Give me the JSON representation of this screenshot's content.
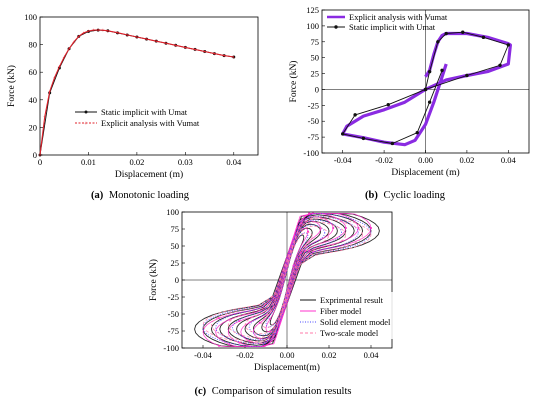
{
  "captions": [
    {
      "letter": "(a)",
      "text": "Monotonic loading"
    },
    {
      "letter": "(b)",
      "text": "Cyclic loading"
    },
    {
      "letter": "(c)",
      "text": "Comparison of simulation results"
    }
  ],
  "colors": {
    "black": "#111111",
    "red": "#e0202a",
    "purple": "#8a2be2",
    "magenta": "#ff33cc",
    "blue": "#4a4aff",
    "pink": "#ff7aa8"
  },
  "chart_data": [
    {
      "id": "a",
      "type": "line",
      "xlabel": "Displacement (m)",
      "ylabel": "Force (kN)",
      "xlim": [
        0,
        0.045
      ],
      "ylim": [
        0,
        100
      ],
      "xticks": [
        0,
        0.01,
        0.02,
        0.03,
        0.04
      ],
      "xtick_labels": [
        "0",
        "0.01",
        "0.02",
        "0.03",
        "0.04"
      ],
      "yticks": [
        0,
        20,
        40,
        60,
        80,
        100
      ],
      "ytick_labels": [
        "0",
        "20",
        "40",
        "60",
        "80",
        "100"
      ],
      "legend_position": "center-right",
      "series": [
        {
          "name": "Static implicit with Umat",
          "color": "#111111",
          "style": "marker-line",
          "x": [
            0,
            0.002,
            0.004,
            0.006,
            0.008,
            0.01,
            0.012,
            0.014,
            0.016,
            0.018,
            0.02,
            0.022,
            0.024,
            0.026,
            0.028,
            0.03,
            0.032,
            0.034,
            0.036,
            0.038,
            0.04
          ],
          "y": [
            0,
            45,
            63,
            77,
            86,
            89.5,
            90.5,
            90,
            88.5,
            87,
            85.5,
            84,
            82.5,
            81,
            79.5,
            78,
            76.5,
            75,
            73.5,
            72,
            71
          ]
        },
        {
          "name": "Explicit analysis with Vumat",
          "color": "#e0202a",
          "style": "dense-marker-line",
          "x": [
            0,
            0.001,
            0.002,
            0.003,
            0.004,
            0.005,
            0.006,
            0.007,
            0.008,
            0.009,
            0.01,
            0.011,
            0.012,
            0.013,
            0.014,
            0.016,
            0.018,
            0.02,
            0.022,
            0.024,
            0.026,
            0.028,
            0.03,
            0.032,
            0.034,
            0.036,
            0.038,
            0.04
          ],
          "y": [
            0,
            28,
            46,
            56,
            64,
            71,
            77,
            82,
            86,
            88.5,
            89.8,
            90.5,
            90.6,
            90.4,
            90,
            88.6,
            87,
            85.5,
            84,
            82.5,
            81,
            79.5,
            78,
            76.5,
            75,
            73.5,
            72,
            71
          ]
        }
      ]
    },
    {
      "id": "b",
      "type": "line",
      "xlabel": "Displacement (m)",
      "ylabel": "Force (kN)",
      "xlim": [
        -0.05,
        0.05
      ],
      "ylim": [
        -100,
        125
      ],
      "xticks": [
        -0.04,
        -0.02,
        0,
        0.02,
        0.04
      ],
      "xtick_labels": [
        "-0.04",
        "-0.02",
        "0.00",
        "0.02",
        "0.04"
      ],
      "yticks": [
        -100,
        -75,
        -50,
        -25,
        0,
        25,
        50,
        75,
        100,
        125
      ],
      "ytick_labels": [
        "-100",
        "-75",
        "-50",
        "-25",
        "0",
        "25",
        "50",
        "75",
        "100",
        "125"
      ],
      "legend_position": "top-left",
      "series": [
        {
          "name": "Explicit analysis with Vumat",
          "color": "#8a2be2",
          "style": "dense-marker-line",
          "x": [
            0,
            0.002,
            0.004,
            0.006,
            0.008,
            0.01,
            0.02,
            0.03,
            0.04,
            0.041,
            0.04,
            0.03,
            0.02,
            0.01,
            0.0,
            -0.01,
            -0.02,
            -0.03,
            -0.038,
            -0.04,
            -0.03,
            -0.02,
            -0.01,
            -0.005,
            0.0,
            0.004,
            0.008,
            0.01
          ],
          "y": [
            20,
            30,
            55,
            75,
            85,
            88,
            88,
            82,
            72,
            70,
            40,
            28,
            22,
            15,
            0,
            -20,
            -32,
            -42,
            -58,
            -70,
            -76,
            -83,
            -87,
            -80,
            -55,
            -20,
            20,
            40
          ]
        },
        {
          "name": "Static implicit with Umat",
          "color": "#111111",
          "style": "marker-line",
          "x": [
            0,
            0.002,
            0.006,
            0.01,
            0.018,
            0.028,
            0.04,
            0.036,
            0.02,
            0.0,
            -0.018,
            -0.034,
            -0.04,
            -0.03,
            -0.016,
            -0.004,
            0.002,
            0.008
          ],
          "y": [
            0,
            28,
            75,
            88,
            90,
            82,
            70,
            38,
            22,
            0,
            -24,
            -40,
            -70,
            -77,
            -85,
            -68,
            -20,
            30
          ]
        }
      ]
    },
    {
      "id": "c",
      "type": "line",
      "xlabel": "Displacement(m)",
      "ylabel": "Force (kN)",
      "xlim": [
        -0.05,
        0.05
      ],
      "ylim": [
        -100,
        100
      ],
      "xticks": [
        -0.04,
        -0.02,
        0,
        0.02,
        0.04
      ],
      "xtick_labels": [
        "-0.04",
        "-0.02",
        "0.00",
        "0.02",
        "0.04"
      ],
      "yticks": [
        -100,
        -75,
        -50,
        -25,
        0,
        25,
        50,
        75,
        100
      ],
      "ytick_labels": [
        "-100",
        "-75",
        "-50",
        "-25",
        "0",
        "25",
        "50",
        "75",
        "100"
      ],
      "legend_position": "bottom-right",
      "series": [
        {
          "name": "Exprimental result",
          "color": "#111111",
          "style": "solid",
          "amplitudes": [
            0.008,
            0.012,
            0.016,
            0.02,
            0.024,
            0.028,
            0.032,
            0.036,
            0.04,
            0.044
          ],
          "peak_force": 85
        },
        {
          "name": "Fiber model",
          "color": "#ff33cc",
          "style": "marker-line",
          "amplitudes": [
            0.01,
            0.016,
            0.022,
            0.028,
            0.034,
            0.04
          ],
          "peak_force": 90
        },
        {
          "name": "Solid element model",
          "color": "#4a4aff",
          "style": "dotted",
          "amplitudes": [
            0.01,
            0.018,
            0.026,
            0.034,
            0.04
          ],
          "peak_force": 82
        },
        {
          "name": "Two-scale model",
          "color": "#ff7aa8",
          "style": "dashed",
          "amplitudes": [
            0.012,
            0.02,
            0.028,
            0.036,
            0.04
          ],
          "peak_force": 78
        }
      ]
    }
  ]
}
